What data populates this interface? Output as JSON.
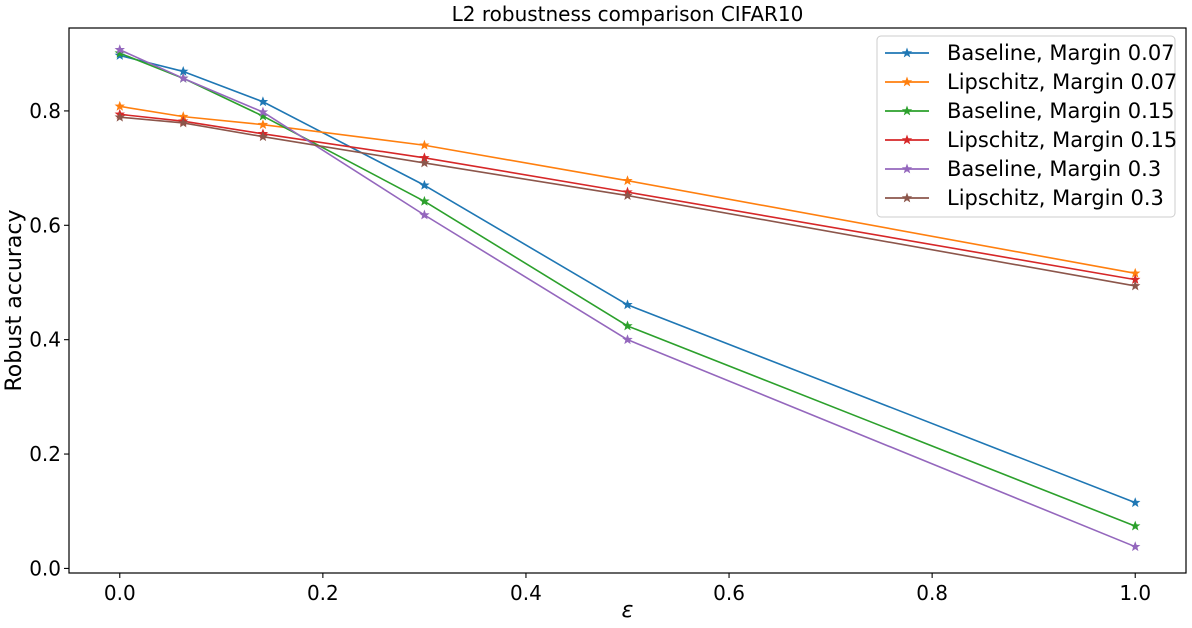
{
  "chart_data": {
    "type": "line",
    "title": "L2 robustness comparison CIFAR10",
    "xlabel": "ε",
    "ylabel": "Robust accuracy",
    "xlim": [
      -0.05,
      1.05
    ],
    "ylim": [
      -0.008,
      0.945
    ],
    "xticks": [
      0.0,
      0.2,
      0.4,
      0.6,
      0.8,
      1.0
    ],
    "xtick_labels": [
      "0.0",
      "0.2",
      "0.4",
      "0.6",
      "0.8",
      "1.0"
    ],
    "yticks": [
      0.0,
      0.2,
      0.4,
      0.6,
      0.8
    ],
    "ytick_labels": [
      "0.0",
      "0.2",
      "0.4",
      "0.6",
      "0.8"
    ],
    "grid": false,
    "legend_position": "top-right",
    "x": [
      0.0,
      0.0625,
      0.141,
      0.3,
      0.5,
      1.0
    ],
    "series": [
      {
        "name": "Baseline, Margin 0.07",
        "color": "#1f77b4",
        "values": [
          0.897,
          0.869,
          0.816,
          0.67,
          0.461,
          0.115
        ]
      },
      {
        "name": "Lipschitz, Margin 0.07",
        "color": "#ff7f0e",
        "values": [
          0.808,
          0.79,
          0.776,
          0.74,
          0.678,
          0.516
        ]
      },
      {
        "name": "Baseline, Margin 0.15",
        "color": "#2ca02c",
        "values": [
          0.901,
          0.857,
          0.791,
          0.642,
          0.424,
          0.074
        ]
      },
      {
        "name": "Lipschitz, Margin 0.15",
        "color": "#d62728",
        "values": [
          0.794,
          0.782,
          0.76,
          0.718,
          0.658,
          0.505
        ]
      },
      {
        "name": "Baseline, Margin 0.3",
        "color": "#9467bd",
        "values": [
          0.907,
          0.857,
          0.798,
          0.618,
          0.4,
          0.038
        ]
      },
      {
        "name": "Lipschitz, Margin 0.3",
        "color": "#8c564b",
        "values": [
          0.789,
          0.779,
          0.755,
          0.709,
          0.652,
          0.494
        ]
      }
    ]
  }
}
